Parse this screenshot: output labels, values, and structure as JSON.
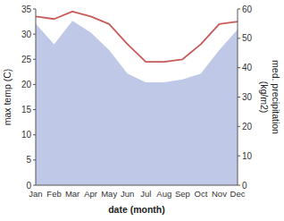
{
  "chart_data": {
    "type": "line",
    "xlabel": "date (month)",
    "ylabel": "max temp (C)",
    "y2label": "med. precipitation\n(kg/m2)",
    "categories": [
      "Jan",
      "Feb",
      "Mar",
      "Apr",
      "May",
      "Jun",
      "Jul",
      "Aug",
      "Sep",
      "Oct",
      "Nov",
      "Dec"
    ],
    "series": [
      {
        "type": "area",
        "axis": "y2",
        "color": "#c0c8e8",
        "values": [
          55,
          48,
          56,
          52,
          46,
          38,
          35,
          35,
          36,
          38,
          46,
          53
        ]
      },
      {
        "type": "line",
        "color": "#c85a5a",
        "values": [
          33.5,
          33.0,
          34.5,
          33.5,
          32.0,
          28.0,
          24.5,
          24.5,
          25.0,
          28.0,
          32.0,
          32.5
        ]
      }
    ],
    "ylim": [
      0,
      35
    ],
    "yticks": [
      0,
      5,
      10,
      15,
      20,
      25,
      30,
      35
    ],
    "y2lim": [
      0,
      60
    ],
    "y2ticks": [
      0,
      10,
      20,
      30,
      40,
      50,
      60
    ],
    "grid": false
  }
}
